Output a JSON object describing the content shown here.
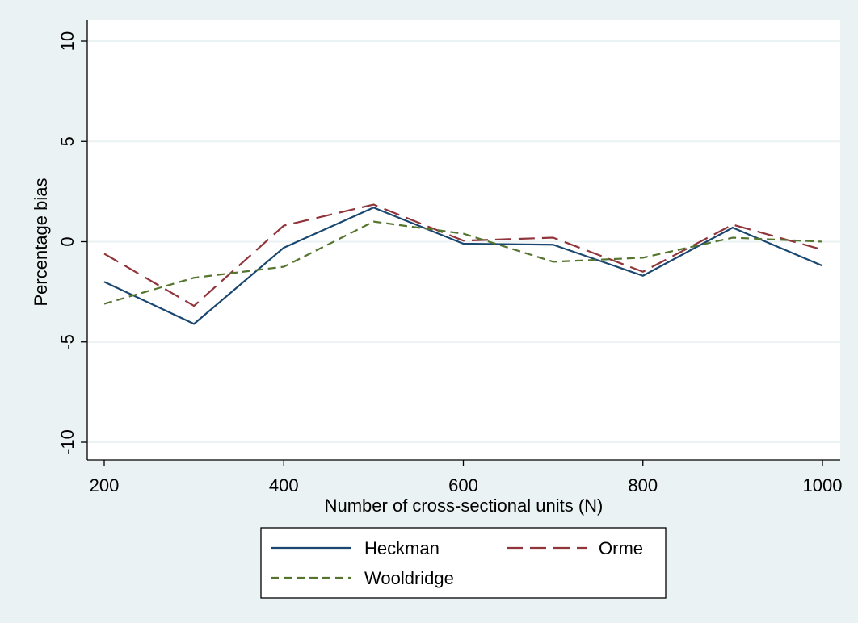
{
  "colors": {
    "outer_background": "#eaf2f3",
    "plot_background": "#ffffff",
    "gridline": "#eaf2f3",
    "axis": "#000000",
    "heckman": "#1a476f",
    "orme": "#90353b",
    "wooldridge": "#55752f"
  },
  "chart_data": {
    "type": "line",
    "title": "",
    "xlabel": "Number of cross-sectional units (N)",
    "ylabel": "Percentage bias",
    "xlim": [
      200,
      1000
    ],
    "ylim": [
      -10,
      10
    ],
    "x_ticks": [
      200,
      400,
      600,
      800,
      1000
    ],
    "y_ticks": [
      -10,
      -5,
      0,
      5,
      10
    ],
    "x_tick_labels": [
      "200",
      "400",
      "600",
      "800",
      "1000"
    ],
    "y_tick_labels": [
      "-10",
      "-5",
      "0",
      "5",
      "10"
    ],
    "grid": true,
    "legend_position": "bottom",
    "x": [
      200,
      300,
      400,
      500,
      600,
      700,
      800,
      900,
      1000
    ],
    "series": [
      {
        "name": "Heckman",
        "style": "solid",
        "color": "#1a476f",
        "values": [
          -2.0,
          -4.1,
          -0.3,
          1.7,
          -0.1,
          -0.15,
          -1.7,
          0.7,
          -1.2
        ]
      },
      {
        "name": "Orme",
        "style": "longdash",
        "color": "#90353b",
        "values": [
          -0.6,
          -3.2,
          0.8,
          1.85,
          0.05,
          0.2,
          -1.5,
          0.85,
          -0.4
        ]
      },
      {
        "name": "Wooldridge",
        "style": "dash",
        "color": "#55752f",
        "values": [
          -3.1,
          -1.8,
          -1.25,
          1.0,
          0.4,
          -1.0,
          -0.8,
          0.2,
          0.0
        ]
      }
    ]
  }
}
